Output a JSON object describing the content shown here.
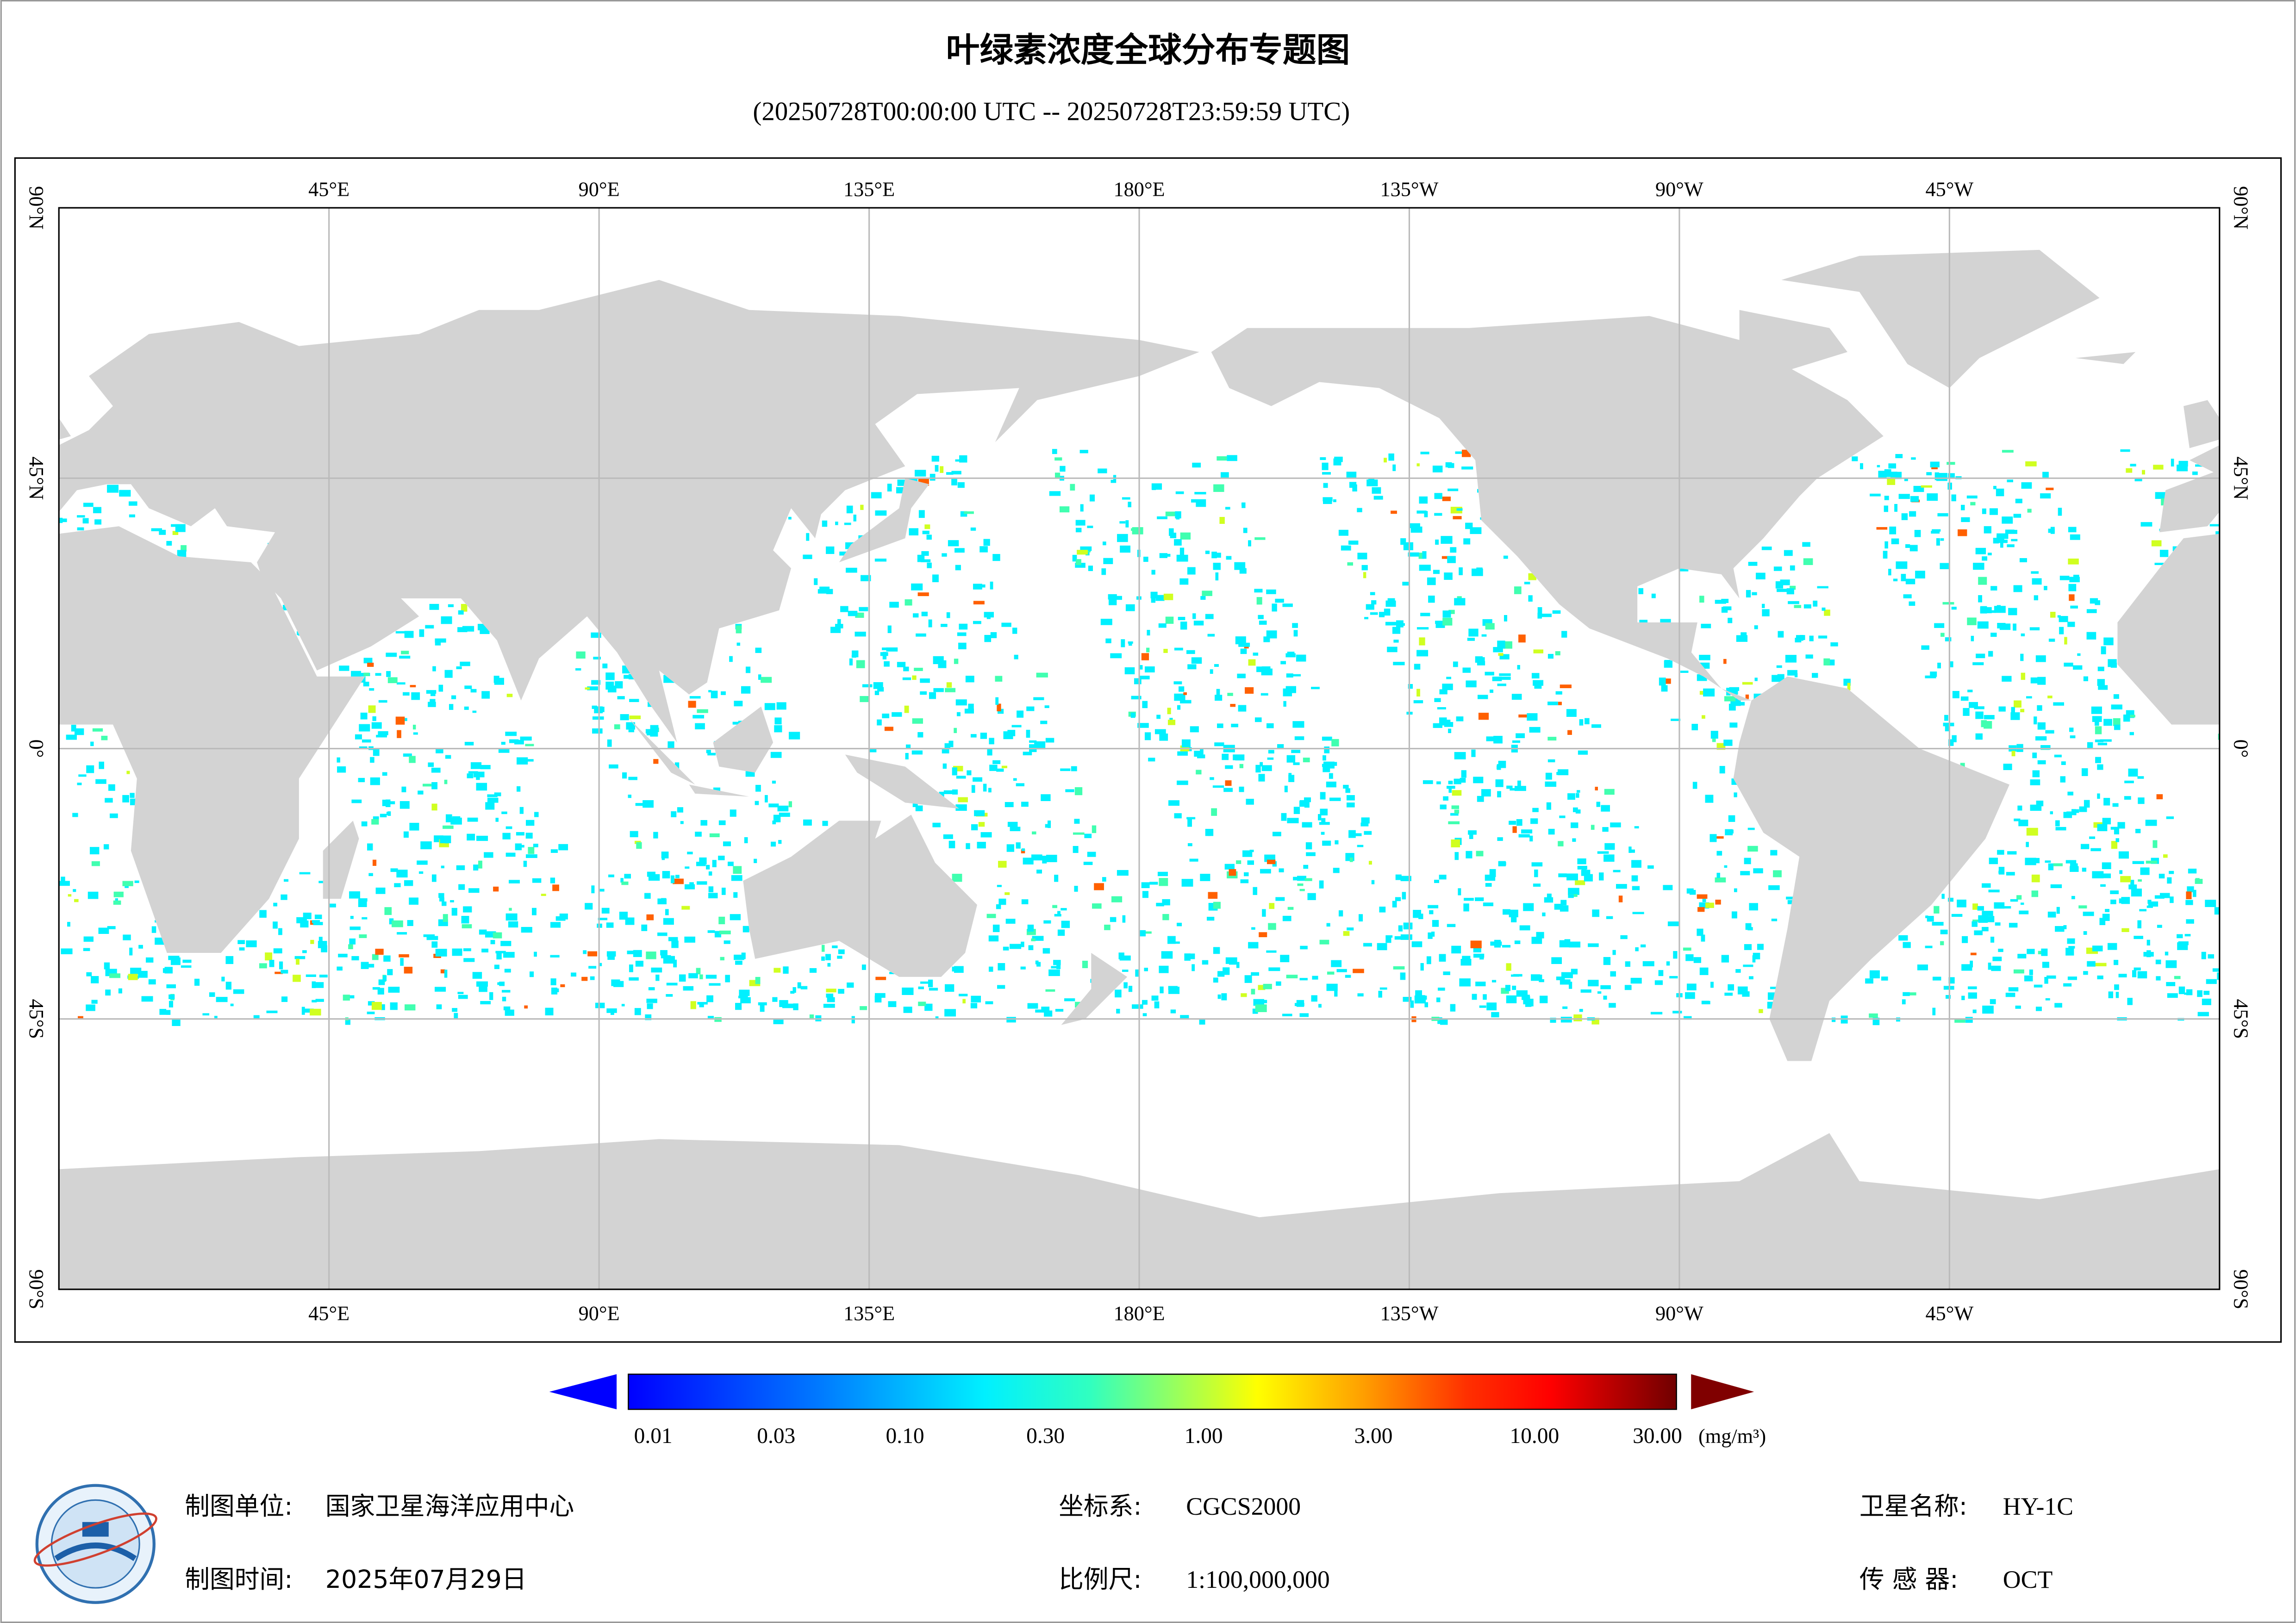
{
  "title": "叶绿素浓度全球分布专题图",
  "subtitle": "(20250728T00:00:00 UTC -- 20250728T23:59:59 UTC)",
  "map": {
    "lon_labels": [
      "45°E",
      "90°E",
      "135°E",
      "180°E",
      "135°W",
      "90°W",
      "45°W"
    ],
    "lat_labels": [
      "90°N",
      "45°N",
      "0°",
      "45°S",
      "90°S"
    ]
  },
  "colorbar": {
    "ticks": [
      "0.01",
      "0.03",
      "0.10",
      "0.30",
      "1.00",
      "3.00",
      "10.00",
      "30.00"
    ],
    "unit": "(mg/m³)"
  },
  "footer": {
    "agency_label": "制图单位:",
    "agency": "国家卫星海洋应用中心",
    "date_label": "制图时间:",
    "date": "2025年07月29日",
    "crs_label": "坐标系:",
    "crs": "CGCS2000",
    "scale_label": "比例尺:",
    "scale": "1:100,000,000",
    "satellite_label": "卫星名称:",
    "satellite": "HY-1C",
    "sensor_label": "传 感 器:",
    "sensor": "OCT"
  }
}
